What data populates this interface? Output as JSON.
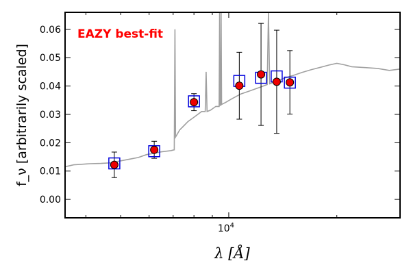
{
  "chart_data": {
    "type": "scatter",
    "annotation": "EAZY best-fit",
    "xlabel": "λ [Å]",
    "ylabel": "f_ν [arbitrarily scaled]",
    "xscale": "log",
    "xlim": [
      3500,
      30000
    ],
    "ylim": [
      -0.0065,
      0.066
    ],
    "grid": false,
    "x_tick_labels": [
      {
        "value": 10000,
        "label": "10^4"
      }
    ],
    "y_tick_labels": [
      "0.00",
      "0.01",
      "0.02",
      "0.03",
      "0.04",
      "0.05",
      "0.06"
    ],
    "y_ticks": [
      0.0,
      0.01,
      0.02,
      0.03,
      0.04,
      0.05,
      0.06
    ],
    "series": [
      {
        "kind": "model_sed",
        "color": "#a0a0a0",
        "points": [
          [
            3500,
            0.0115
          ],
          [
            3700,
            0.0122
          ],
          [
            3900,
            0.0124
          ],
          [
            4100,
            0.0126
          ],
          [
            4400,
            0.0127
          ],
          [
            4700,
            0.0129
          ],
          [
            5000,
            0.0136
          ],
          [
            5300,
            0.0142
          ],
          [
            5600,
            0.0148
          ],
          [
            5900,
            0.0158
          ],
          [
            6200,
            0.0163
          ],
          [
            6500,
            0.0168
          ],
          [
            6900,
            0.0172
          ],
          [
            7050,
            0.0175
          ],
          [
            7080,
            0.06
          ],
          [
            7110,
            0.022
          ],
          [
            7300,
            0.0245
          ],
          [
            7500,
            0.026
          ],
          [
            7700,
            0.0275
          ],
          [
            8000,
            0.029
          ],
          [
            8400,
            0.031
          ],
          [
            8600,
            0.031
          ],
          [
            8650,
            0.045
          ],
          [
            8700,
            0.031
          ],
          [
            8900,
            0.0315
          ],
          [
            9200,
            0.0328
          ],
          [
            9400,
            0.0328
          ],
          [
            9430,
            0.066
          ],
          [
            9460,
            0.0332
          ],
          [
            9500,
            0.0332
          ],
          [
            9520,
            0.066
          ],
          [
            9550,
            0.0335
          ],
          [
            9800,
            0.0342
          ],
          [
            10200,
            0.0355
          ],
          [
            10800,
            0.0372
          ],
          [
            11400,
            0.0382
          ],
          [
            12000,
            0.0392
          ],
          [
            12600,
            0.0402
          ],
          [
            12800,
            0.0405
          ],
          [
            12900,
            0.066
          ],
          [
            13000,
            0.0408
          ],
          [
            13600,
            0.0418
          ],
          [
            14300,
            0.0428
          ],
          [
            15000,
            0.0436
          ],
          [
            16000,
            0.0448
          ],
          [
            17000,
            0.0458
          ],
          [
            18000,
            0.0466
          ],
          [
            19000,
            0.0474
          ],
          [
            20000,
            0.048
          ],
          [
            21000,
            0.0475
          ],
          [
            22000,
            0.0468
          ],
          [
            24000,
            0.0465
          ],
          [
            26000,
            0.0462
          ],
          [
            28000,
            0.0455
          ],
          [
            30000,
            0.046
          ]
        ]
      },
      {
        "kind": "model_photometry",
        "marker": "open-square",
        "color": "#0000dd",
        "x": [
          4800,
          6200,
          8000,
          10700,
          12300,
          13600,
          14800
        ],
        "y": [
          0.0127,
          0.017,
          0.0346,
          0.0418,
          0.0429,
          0.0434,
          0.0412
        ]
      },
      {
        "kind": "observed_photometry",
        "marker": "filled-circle",
        "color": "#ee0000",
        "x": [
          4800,
          6200,
          8000,
          10700,
          12300,
          13600,
          14800
        ],
        "y": [
          0.0122,
          0.0175,
          0.0343,
          0.0401,
          0.0441,
          0.0415,
          0.0413
        ],
        "yerr": [
          0.0045,
          0.003,
          0.003,
          0.0118,
          0.018,
          0.0182,
          0.0112
        ]
      }
    ]
  }
}
